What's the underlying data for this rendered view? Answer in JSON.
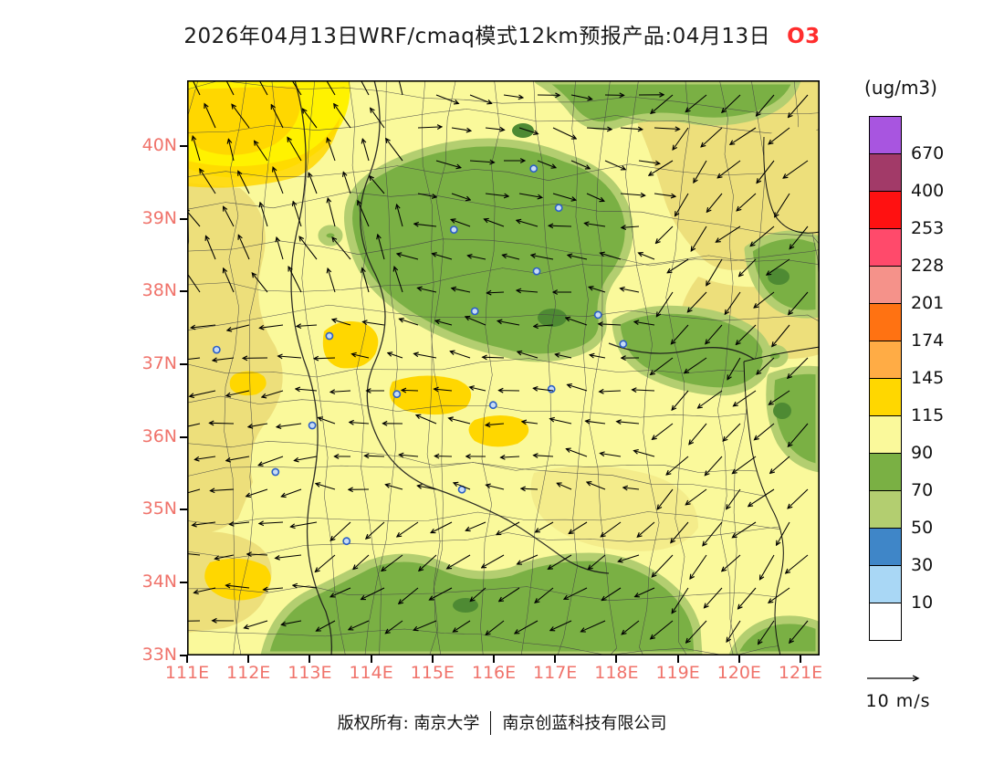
{
  "title": {
    "main": "2026年04月13日WRF/cmaq模式12km预报产品:04月13日",
    "species": "O3"
  },
  "legend": {
    "unit": "(ug/m3)",
    "levels": [
      "670",
      "400",
      "253",
      "228",
      "201",
      "174",
      "145",
      "115",
      "90",
      "70",
      "50",
      "30",
      "10"
    ],
    "box_colors": [
      "#A855E0",
      "#A23A68",
      "#FF1111",
      "#FF4A6B",
      "#F5928A",
      "#FF7212",
      "#FFAC45",
      "#FFD700",
      "#FAF99B",
      "#7AB044",
      "#B3CE70",
      "#3F86C8",
      "#A9D7F5",
      "#FFFFFF"
    ]
  },
  "wind_legend": {
    "label": "10 m/s"
  },
  "footer": {
    "owner": "版权所有: 南京大学",
    "company": "南京创蓝科技有限公司"
  },
  "colors": {
    "axis_label": "#F0736B",
    "species": "#FF2D2D",
    "base": "#FAF99B",
    "khaki": "#EDDF7B",
    "vivid_yellow": "#FFF200",
    "gold": "#FFD700",
    "green": "#7AB044",
    "light_green": "#B3CE70",
    "dark_green": "#4E8A33",
    "marker_ring": "#2B5FC7",
    "marker_fill": "#C7DCF5"
  },
  "chart_data": {
    "type": "heatmap",
    "title": "WRF/CMAQ 12km O3 forecast product for 2026-04-13",
    "unit": "ug/m3",
    "lon_range": [
      111,
      121.31
    ],
    "lat_range": [
      33,
      40.9
    ],
    "x_ticks": [
      {
        "label": "111E",
        "lon": 111
      },
      {
        "label": "112E",
        "lon": 112
      },
      {
        "label": "113E",
        "lon": 113
      },
      {
        "label": "114E",
        "lon": 114
      },
      {
        "label": "115E",
        "lon": 115
      },
      {
        "label": "116E",
        "lon": 116
      },
      {
        "label": "117E",
        "lon": 117
      },
      {
        "label": "118E",
        "lon": 118
      },
      {
        "label": "119E",
        "lon": 119
      },
      {
        "label": "120E",
        "lon": 120
      },
      {
        "label": "121E",
        "lon": 121
      }
    ],
    "y_ticks": [
      {
        "label": "40N",
        "lat": 40
      },
      {
        "label": "39N",
        "lat": 39
      },
      {
        "label": "38N",
        "lat": 38
      },
      {
        "label": "37N",
        "lat": 37
      },
      {
        "label": "36N",
        "lat": 36
      },
      {
        "label": "35N",
        "lat": 35
      },
      {
        "label": "34N",
        "lat": 34
      },
      {
        "label": "33N",
        "lat": 33
      }
    ],
    "levels": [
      10,
      30,
      50,
      70,
      90,
      115,
      145,
      174,
      201,
      228,
      253,
      400,
      670
    ],
    "palette_top_to_bottom": [
      "#A855E0",
      "#A23A68",
      "#FF1111",
      "#FF4A6B",
      "#F5928A",
      "#FF7212",
      "#FFAC45",
      "#FFD700",
      "#FAF99B",
      "#7AB044",
      "#B3CE70",
      "#3F86C8",
      "#A9D7F5",
      "#FFFFFF"
    ],
    "regions": [
      {
        "region": "northwest corner (111-113.5E, 40-40.9N)",
        "o3": "145-174"
      },
      {
        "region": "western band over Shanxi (111-112.5E, 34.5-40N)",
        "o3": "115-145"
      },
      {
        "region": "north-central highlands (113.5-117.5E, 37.9-40.9N)",
        "o3": "70-90 (pockets 50-70)"
      },
      {
        "region": "central plain (112.5-118.5E, 34-38N)",
        "o3": "90-115"
      },
      {
        "region": "local maxima near 113.5E/37.4N, 114.8E/36.6N, 116.1E/36N, 111.5E/34.2N",
        "o3": "145-174"
      },
      {
        "region": "southern mountain band along 33-33.8N",
        "o3": "70-90"
      },
      {
        "region": "northeast coastal / Bohai (118-121.3E, 39-40.9N)",
        "o3": "115-145"
      },
      {
        "region": "Shandong peninsula hills (120-121.3E, 37-38.7N and 36-36.8N)",
        "o3": "70-90"
      }
    ],
    "cities": [
      [
        116.65,
        39.69
      ],
      [
        117.06,
        39.15
      ],
      [
        115.35,
        38.85
      ],
      [
        116.7,
        38.28
      ],
      [
        115.69,
        37.73
      ],
      [
        118.11,
        37.28
      ],
      [
        114.42,
        36.59
      ],
      [
        116.94,
        36.66
      ],
      [
        115.99,
        36.44
      ],
      [
        113.04,
        36.16
      ],
      [
        112.44,
        35.52
      ],
      [
        115.48,
        35.28
      ],
      [
        113.6,
        34.57
      ],
      [
        113.32,
        37.39
      ],
      [
        111.48,
        37.2
      ],
      [
        117.7,
        37.68
      ]
    ],
    "wind": {
      "reference": "10 m/s",
      "pattern": "dense northeasterly flow (arrows toward SW) over the eastern half; westward flow over the center and west; southerly/up-slope arrows in the northwest corner; west-southwest flow along the southern edge"
    }
  }
}
